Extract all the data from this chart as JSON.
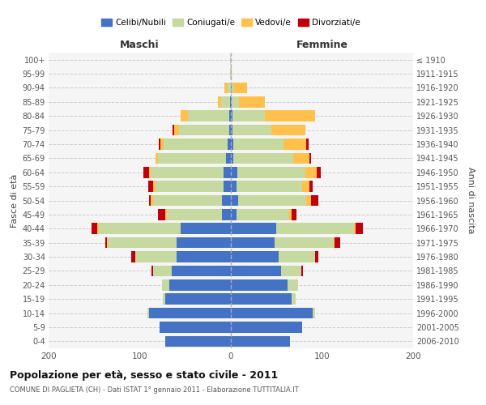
{
  "age_groups": [
    "0-4",
    "5-9",
    "10-14",
    "15-19",
    "20-24",
    "25-29",
    "30-34",
    "35-39",
    "40-44",
    "45-49",
    "50-54",
    "55-59",
    "60-64",
    "65-69",
    "70-74",
    "75-79",
    "80-84",
    "85-89",
    "90-94",
    "95-99",
    "100+"
  ],
  "birth_years": [
    "2006-2010",
    "2001-2005",
    "1996-2000",
    "1991-1995",
    "1986-1990",
    "1981-1985",
    "1976-1980",
    "1971-1975",
    "1966-1970",
    "1961-1965",
    "1956-1960",
    "1951-1955",
    "1946-1950",
    "1941-1945",
    "1936-1940",
    "1931-1935",
    "1926-1930",
    "1921-1925",
    "1916-1920",
    "1911-1915",
    "≤ 1910"
  ],
  "maschi": {
    "celibi": [
      72,
      78,
      90,
      72,
      68,
      65,
      60,
      60,
      55,
      10,
      10,
      8,
      8,
      5,
      4,
      2,
      2,
      1,
      0,
      0,
      0
    ],
    "coniugati": [
      0,
      0,
      2,
      3,
      8,
      20,
      45,
      75,
      90,
      60,
      75,
      75,
      80,
      75,
      70,
      55,
      45,
      10,
      4,
      1,
      1
    ],
    "vedovi": [
      0,
      0,
      0,
      0,
      0,
      0,
      0,
      1,
      2,
      2,
      3,
      2,
      2,
      3,
      3,
      5,
      8,
      3,
      3,
      0,
      0
    ],
    "divorziati": [
      0,
      0,
      0,
      0,
      0,
      2,
      4,
      2,
      6,
      8,
      2,
      6,
      6,
      0,
      2,
      2,
      0,
      0,
      0,
      0,
      0
    ]
  },
  "femmine": {
    "nubili": [
      65,
      78,
      90,
      67,
      62,
      55,
      52,
      48,
      50,
      6,
      8,
      6,
      7,
      3,
      3,
      2,
      2,
      1,
      1,
      0,
      0
    ],
    "coniugate": [
      0,
      0,
      2,
      4,
      12,
      22,
      40,
      65,
      85,
      58,
      75,
      72,
      75,
      65,
      55,
      42,
      35,
      8,
      2,
      0,
      0
    ],
    "vedove": [
      0,
      0,
      0,
      0,
      0,
      0,
      0,
      1,
      2,
      3,
      5,
      8,
      12,
      18,
      25,
      38,
      55,
      28,
      15,
      1,
      0
    ],
    "divorziate": [
      0,
      0,
      0,
      0,
      0,
      2,
      4,
      6,
      8,
      5,
      8,
      4,
      5,
      2,
      2,
      0,
      0,
      0,
      0,
      0,
      0
    ]
  },
  "colors": {
    "celibi_nubili": "#4472c4",
    "coniugati_e": "#c5d9a0",
    "vedovi_e": "#ffc04c",
    "divorziati_e": "#c0000a"
  },
  "title": "Popolazione per età, sesso e stato civile - 2011",
  "subtitle": "COMUNE DI PAGLIETA (CH) - Dati ISTAT 1° gennaio 2011 - Elaborazione TUTTITALIA.IT",
  "xlabel_left": "Maschi",
  "xlabel_right": "Femmine",
  "ylabel_left": "Fasce di età",
  "ylabel_right": "Anni di nascita",
  "xlim": 200,
  "background_color": "#ffffff",
  "plot_bg": "#f5f5f5",
  "grid_color": "#cccccc"
}
